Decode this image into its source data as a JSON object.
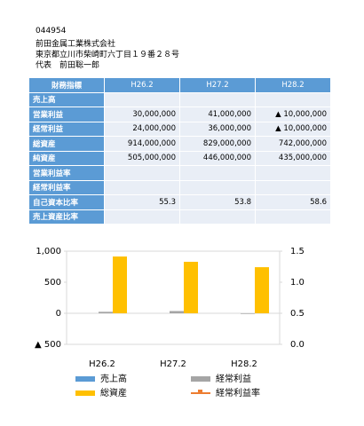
{
  "header": {
    "code": "044954",
    "company": "前田金属工業株式会社",
    "address": "東京都立川市柴崎町六丁目１９番２８号",
    "representative": "代表　前田聡一郎"
  },
  "table": {
    "columns": [
      "財務指標",
      "H26.2",
      "H27.2",
      "H28.2"
    ],
    "rows": [
      [
        "売上高",
        null,
        null,
        null
      ],
      [
        "営業利益",
        "30,000,000",
        "41,000,000",
        "▲ 10,000,000"
      ],
      [
        "経常利益",
        "24,000,000",
        "36,000,000",
        "▲ 10,000,000"
      ],
      [
        "総資産",
        "914,000,000",
        "829,000,000",
        "742,000,000"
      ],
      [
        "純資産",
        "505,000,000",
        "446,000,000",
        "435,000,000"
      ],
      [
        "営業利益率",
        null,
        null,
        null
      ],
      [
        "経常利益率",
        null,
        null,
        null
      ],
      [
        "自己資本比率",
        "55.3",
        "53.8",
        "58.6"
      ],
      [
        "売上資産比率",
        null,
        null,
        null
      ]
    ]
  },
  "chart_data": {
    "type": "bar",
    "categories": [
      "H26.2",
      "H27.2",
      "H28.2"
    ],
    "series": [
      {
        "name": "売上高",
        "color": "#5b9bd5",
        "values": [
          null,
          null,
          null
        ]
      },
      {
        "name": "経常利益",
        "color": "#a5a5a5",
        "values": [
          24,
          36,
          -10
        ]
      },
      {
        "name": "総資産",
        "color": "#ffc000",
        "values": [
          914,
          829,
          742
        ]
      },
      {
        "name": "経常利益率",
        "color": "#ed7d31",
        "type": "line",
        "axis": "y2",
        "values": [
          null,
          null,
          null
        ]
      }
    ],
    "ylim": [
      -500,
      1000
    ],
    "yticks": [
      {
        "value": 1000,
        "label": "1,000"
      },
      500,
      0,
      {
        "value": -500,
        "label": "▲ 500"
      }
    ],
    "y2lim": [
      0,
      1.5
    ],
    "y2ticks": [
      1.5,
      {
        "value": 1,
        "label": "1.0"
      },
      0.5,
      {
        "value": 0,
        "label": "0.0"
      }
    ]
  }
}
